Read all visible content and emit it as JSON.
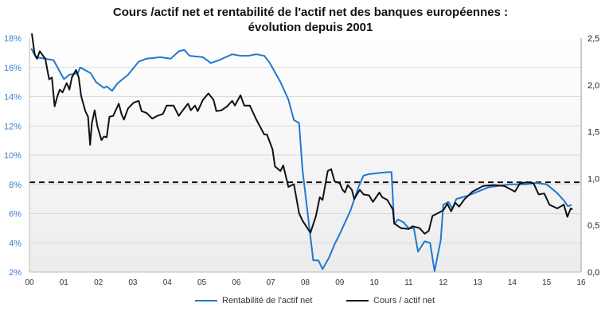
{
  "chart_data": {
    "type": "line",
    "title_line1": "Cours /actif net et rentabilité de l'actif net des banques européennes :",
    "title_line2": "évolution depuis 2001",
    "x_ticks": [
      "00",
      "01",
      "02",
      "03",
      "04",
      "05",
      "06",
      "07",
      "08",
      "09",
      "10",
      "11",
      "12",
      "13",
      "14",
      "15",
      "16"
    ],
    "xlim": [
      0,
      16
    ],
    "y_left": {
      "ticks": [
        "2%",
        "4%",
        "6%",
        "8%",
        "10%",
        "12%",
        "14%",
        "16%",
        "18%"
      ],
      "lim": [
        2,
        18
      ]
    },
    "y_right": {
      "ticks": [
        "0,0",
        "0,5",
        "1,0",
        "1,5",
        "2,0",
        "2,5"
      ],
      "lim": [
        0,
        2.5
      ]
    },
    "reference_line": {
      "axis": "right",
      "value": 0.96,
      "style": "dashed"
    },
    "grid": true,
    "legend_position": "bottom",
    "series": [
      {
        "name": "Rentabilité de l'actif net",
        "axis": "left",
        "color": "#1f78d1",
        "x": [
          0.05,
          0.19,
          0.7,
          1.0,
          1.16,
          1.4,
          1.47,
          1.78,
          1.93,
          2.16,
          2.24,
          2.4,
          2.55,
          2.86,
          3.17,
          3.4,
          3.79,
          4.1,
          4.33,
          4.49,
          4.64,
          5.03,
          5.26,
          5.5,
          5.88,
          6.12,
          6.35,
          6.58,
          6.81,
          6.97,
          7.28,
          7.51,
          7.67,
          7.82,
          7.92,
          8.0,
          8.23,
          8.38,
          8.5,
          8.69,
          8.85,
          9.0,
          9.31,
          9.54,
          9.69,
          9.85,
          10.23,
          10.5,
          10.58,
          10.69,
          10.85,
          11.0,
          11.15,
          11.27,
          11.46,
          11.62,
          11.75,
          11.93,
          12.0,
          12.15,
          12.27,
          12.38,
          12.69,
          13.0,
          13.31,
          13.62,
          13.93,
          14.08,
          14.39,
          14.69,
          15.0,
          15.31,
          15.5,
          15.62,
          15.72
        ],
        "y": [
          17.3,
          16.7,
          16.5,
          15.2,
          15.5,
          15.6,
          16.0,
          15.6,
          15.0,
          14.6,
          14.7,
          14.4,
          14.9,
          15.5,
          16.4,
          16.6,
          16.7,
          16.6,
          17.1,
          17.2,
          16.8,
          16.7,
          16.3,
          16.5,
          16.9,
          16.8,
          16.8,
          16.9,
          16.8,
          16.3,
          15.0,
          13.8,
          12.4,
          12.2,
          9.0,
          7.4,
          2.8,
          2.8,
          2.2,
          3.0,
          3.9,
          4.6,
          6.2,
          7.8,
          8.6,
          8.7,
          8.8,
          8.85,
          5.3,
          5.6,
          5.4,
          5.0,
          5.0,
          3.4,
          4.1,
          4.0,
          2.06,
          4.2,
          6.6,
          6.8,
          6.35,
          7.0,
          7.2,
          7.5,
          7.8,
          7.9,
          8.0,
          8.0,
          8.0,
          8.1,
          8.0,
          7.4,
          6.9,
          6.5,
          6.6
        ]
      },
      {
        "name": "Cours / actif net",
        "axis": "right",
        "color": "#111111",
        "x": [
          0.07,
          0.15,
          0.22,
          0.3,
          0.46,
          0.57,
          0.65,
          0.73,
          0.81,
          0.88,
          0.96,
          1.08,
          1.16,
          1.23,
          1.35,
          1.43,
          1.5,
          1.62,
          1.7,
          1.76,
          1.81,
          1.89,
          1.97,
          2.09,
          2.16,
          2.24,
          2.32,
          2.43,
          2.59,
          2.67,
          2.74,
          2.86,
          3.02,
          3.17,
          3.25,
          3.4,
          3.56,
          3.71,
          3.87,
          3.98,
          4.18,
          4.33,
          4.49,
          4.6,
          4.68,
          4.8,
          4.88,
          5.03,
          5.19,
          5.34,
          5.42,
          5.57,
          5.73,
          5.88,
          5.96,
          6.12,
          6.23,
          6.39,
          6.58,
          6.81,
          6.89,
          7.05,
          7.12,
          7.28,
          7.36,
          7.51,
          7.67,
          7.82,
          7.92,
          8.15,
          8.31,
          8.42,
          8.5,
          8.65,
          8.75,
          8.85,
          9.0,
          9.08,
          9.15,
          9.23,
          9.35,
          9.42,
          9.58,
          9.69,
          9.85,
          9.96,
          10.15,
          10.23,
          10.38,
          10.54,
          10.58,
          10.77,
          11.0,
          11.11,
          11.31,
          11.46,
          11.58,
          11.69,
          11.85,
          12.0,
          12.12,
          12.23,
          12.35,
          12.46,
          12.62,
          12.85,
          13.16,
          13.47,
          13.77,
          14.08,
          14.23,
          14.46,
          14.62,
          14.77,
          14.93,
          15.08,
          15.31,
          15.5,
          15.6,
          15.7,
          15.75
        ],
        "y": [
          2.58,
          2.33,
          2.28,
          2.36,
          2.28,
          2.06,
          2.08,
          1.77,
          1.88,
          1.95,
          1.92,
          2.02,
          1.95,
          2.08,
          2.16,
          2.08,
          1.88,
          1.72,
          1.66,
          1.36,
          1.59,
          1.73,
          1.56,
          1.41,
          1.45,
          1.44,
          1.66,
          1.67,
          1.8,
          1.69,
          1.63,
          1.75,
          1.81,
          1.83,
          1.72,
          1.7,
          1.64,
          1.67,
          1.69,
          1.78,
          1.78,
          1.67,
          1.75,
          1.8,
          1.73,
          1.78,
          1.72,
          1.84,
          1.91,
          1.84,
          1.72,
          1.73,
          1.77,
          1.83,
          1.78,
          1.89,
          1.78,
          1.78,
          1.63,
          1.47,
          1.47,
          1.31,
          1.13,
          1.08,
          1.14,
          0.91,
          0.94,
          0.63,
          0.55,
          0.42,
          0.6,
          0.8,
          0.77,
          1.08,
          1.1,
          0.97,
          0.95,
          0.88,
          0.85,
          0.93,
          0.88,
          0.78,
          0.88,
          0.83,
          0.82,
          0.75,
          0.85,
          0.8,
          0.77,
          0.67,
          0.52,
          0.47,
          0.46,
          0.49,
          0.47,
          0.41,
          0.44,
          0.6,
          0.63,
          0.66,
          0.73,
          0.65,
          0.74,
          0.7,
          0.78,
          0.86,
          0.92,
          0.93,
          0.92,
          0.86,
          0.95,
          0.96,
          0.95,
          0.83,
          0.84,
          0.72,
          0.68,
          0.72,
          0.59,
          0.68,
          0.67
        ]
      }
    ]
  }
}
